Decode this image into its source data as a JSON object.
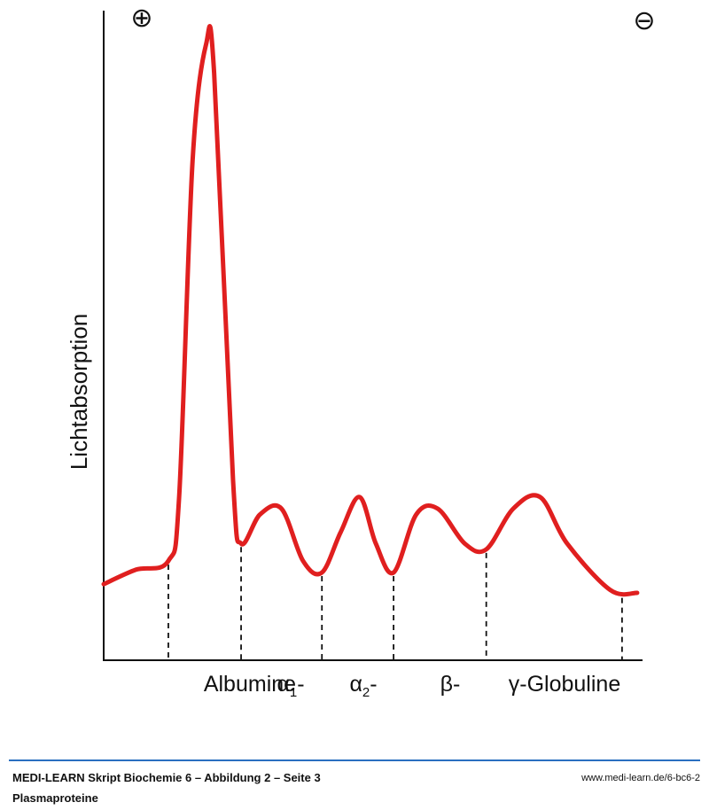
{
  "chart_data": {
    "type": "line",
    "title": "",
    "ylabel": "Lichtabsorption",
    "xlabel": "",
    "pole_labels": {
      "left": "⊕",
      "right": "⊖"
    },
    "fractions": [
      {
        "name": "Albumine",
        "sub": "",
        "suffix": ""
      },
      {
        "name": "α",
        "sub": "1",
        "suffix": "-"
      },
      {
        "name": "α",
        "sub": "2",
        "suffix": "-"
      },
      {
        "name": "β",
        "sub": "",
        "suffix": "-"
      },
      {
        "name": "γ",
        "sub": "",
        "suffix": "-Globuline"
      }
    ],
    "boundaries": [
      0.12,
      0.255,
      0.405,
      0.538,
      0.71,
      0.962
    ],
    "curve": {
      "color": "#e01f1f",
      "x": [
        0.0,
        0.06,
        0.12,
        0.14,
        0.165,
        0.19,
        0.205,
        0.24,
        0.255,
        0.29,
        0.33,
        0.37,
        0.405,
        0.44,
        0.475,
        0.505,
        0.538,
        0.58,
        0.62,
        0.67,
        0.71,
        0.76,
        0.81,
        0.86,
        0.94,
        0.99
      ],
      "y": [
        0.07,
        0.095,
        0.11,
        0.22,
        0.8,
        1.0,
        0.95,
        0.25,
        0.14,
        0.19,
        0.2,
        0.11,
        0.09,
        0.16,
        0.22,
        0.14,
        0.09,
        0.19,
        0.2,
        0.14,
        0.13,
        0.2,
        0.22,
        0.14,
        0.06,
        0.055
      ]
    },
    "grid": false,
    "legend": "none"
  },
  "footer": {
    "title": "MEDI-LEARN Skript Biochemie 6 – Abbildung 2 – Seite 3",
    "subtitle": "Plasmaproteine",
    "url": "www.medi-learn.de/6-bc6-2"
  }
}
